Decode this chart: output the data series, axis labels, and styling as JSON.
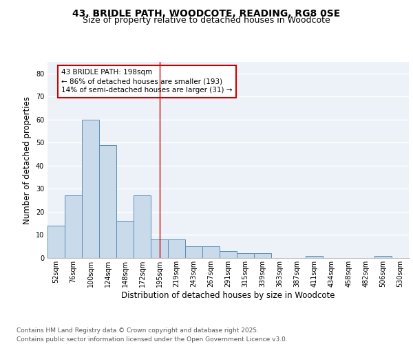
{
  "title_line1": "43, BRIDLE PATH, WOODCOTE, READING, RG8 0SE",
  "title_line2": "Size of property relative to detached houses in Woodcote",
  "xlabel": "Distribution of detached houses by size in Woodcote",
  "ylabel": "Number of detached properties",
  "bar_labels": [
    "52sqm",
    "76sqm",
    "100sqm",
    "124sqm",
    "148sqm",
    "172sqm",
    "195sqm",
    "219sqm",
    "243sqm",
    "267sqm",
    "291sqm",
    "315sqm",
    "339sqm",
    "363sqm",
    "387sqm",
    "411sqm",
    "434sqm",
    "458sqm",
    "482sqm",
    "506sqm",
    "530sqm"
  ],
  "bar_values": [
    14,
    27,
    60,
    49,
    16,
    27,
    8,
    8,
    5,
    5,
    3,
    2,
    2,
    0,
    0,
    1,
    0,
    0,
    0,
    1,
    0
  ],
  "bar_color": "#c9daea",
  "bar_edgecolor": "#5b8db8",
  "ylim": [
    0,
    85
  ],
  "yticks": [
    0,
    10,
    20,
    30,
    40,
    50,
    60,
    70,
    80
  ],
  "vline_x": 6.0,
  "vline_color": "#cc0000",
  "annotation_title": "43 BRIDLE PATH: 198sqm",
  "annotation_line2": "← 86% of detached houses are smaller (193)",
  "annotation_line3": "14% of semi-detached houses are larger (31) →",
  "annotation_box_color": "#cc0000",
  "annotation_box_facecolor": "white",
  "footer_line1": "Contains HM Land Registry data © Crown copyright and database right 2025.",
  "footer_line2": "Contains public sector information licensed under the Open Government Licence v3.0.",
  "background_color": "#edf2f9",
  "grid_color": "#ffffff",
  "title_fontsize": 10,
  "subtitle_fontsize": 9,
  "axis_label_fontsize": 8.5,
  "tick_fontsize": 7,
  "footer_fontsize": 6.5,
  "annotation_fontsize": 7.5
}
